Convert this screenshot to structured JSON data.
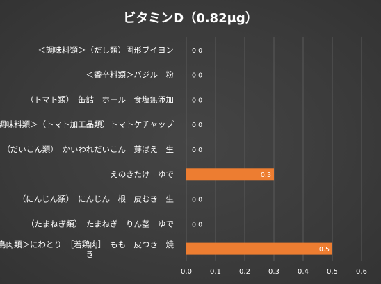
{
  "chart_data": {
    "type": "bar",
    "orientation": "horizontal",
    "title": "ビタミンD（0.82μg）",
    "categories": [
      [
        "＜調味料類＞（だし類）固形ブイヨン"
      ],
      [
        "＜香辛料類＞バジル　粉"
      ],
      [
        "（トマト類）　缶詰　ホール　食塩無添加"
      ],
      [
        "＜調味料類＞（トマト加工品類）トマトケチャップ"
      ],
      [
        "（だいこん類）　かいわれだいこん　芽ばえ　生"
      ],
      [
        "えのきたけ　ゆで"
      ],
      [
        "（にんじん類）　にんじん　根　皮むき　生"
      ],
      [
        "（たまねぎ類）　たまねぎ　りん茎　ゆで"
      ],
      [
        "＜鳥肉類＞にわとり　［若鶏肉］　もも　皮つき　焼",
        "き"
      ]
    ],
    "values": [
      0.0,
      0.0,
      0.0,
      0.0,
      0.0,
      0.3,
      0.0,
      0.0,
      0.5
    ],
    "value_labels": [
      "0.0",
      "0.0",
      "0.0",
      "0.0",
      "0.0",
      "0.3",
      "0.0",
      "0.0",
      "0.5"
    ],
    "x_ticks": [
      "0.0",
      "0.1",
      "0.2",
      "0.3",
      "0.4",
      "0.5",
      "0.6"
    ],
    "xlim": [
      0,
      0.6
    ],
    "grid": true,
    "bar_color": "#ed7d31",
    "grid_color": "#5a5a5a",
    "text_color": "#ffffff"
  }
}
